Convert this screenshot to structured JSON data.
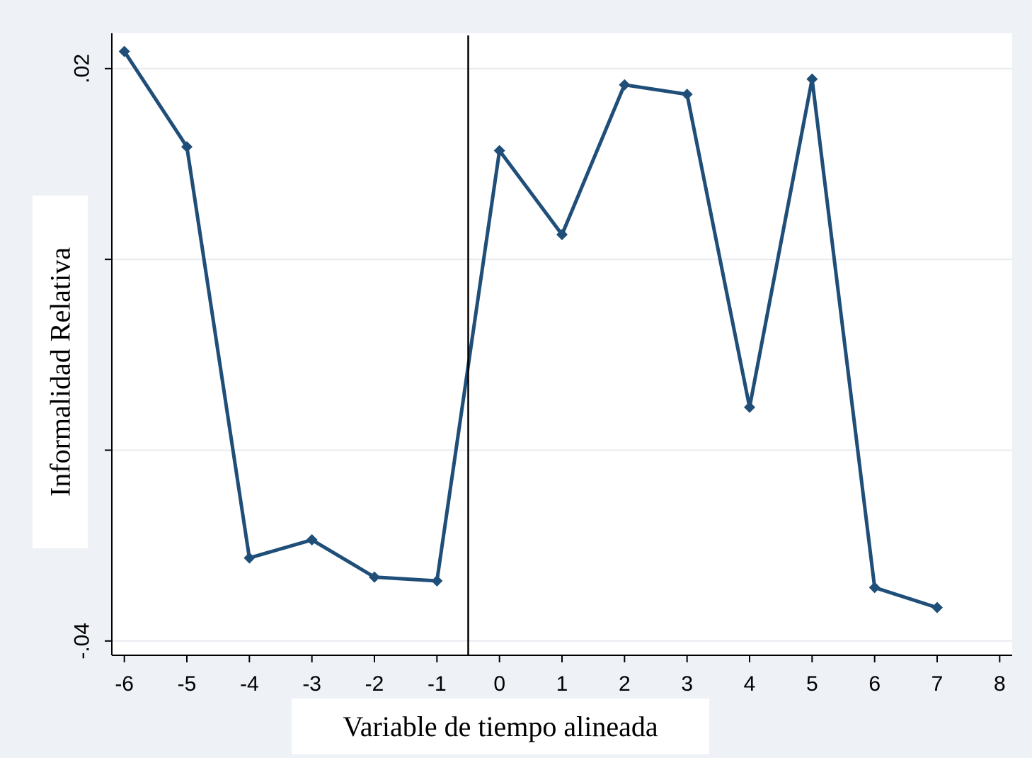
{
  "chart_data": {
    "type": "line",
    "xlabel": "Variable de tiempo alineada",
    "ylabel": "Informalidad Relativa",
    "xlim": [
      -6.2,
      8.2
    ],
    "ylim": [
      -0.0415,
      0.0237
    ],
    "x_ticks": [
      -6,
      -5,
      -4,
      -3,
      -2,
      -1,
      0,
      1,
      2,
      3,
      4,
      5,
      6,
      7,
      8
    ],
    "x_tick_labels": [
      "-6",
      "-5",
      "-4",
      "-3",
      "-2",
      "-1",
      "0",
      "1",
      "2",
      "3",
      "4",
      "5",
      "6",
      "7",
      "8"
    ],
    "y_ticks": [
      0.02,
      0,
      -0.02,
      -0.04
    ],
    "y_tick_labels": [
      ".02",
      "",
      "",
      "-.04"
    ],
    "grid": true,
    "vertical_reference_line_x": -0.5,
    "series": [
      {
        "color": "#1f4e79",
        "x": [
          -6,
          -5,
          -4,
          -3,
          -2,
          -1,
          0,
          1,
          2,
          3,
          4,
          5,
          6,
          7
        ],
        "values": [
          0.0218,
          0.0118,
          -0.0313,
          -0.0294,
          -0.0333,
          -0.0337,
          0.0114,
          0.0026,
          0.0183,
          0.0173,
          -0.0155,
          0.0189,
          -0.0344,
          -0.0365
        ]
      }
    ],
    "colors": {
      "background": "#eef1f6",
      "plot": "#ffffff",
      "grid": "#e8ebef",
      "axis": "#000000"
    }
  }
}
